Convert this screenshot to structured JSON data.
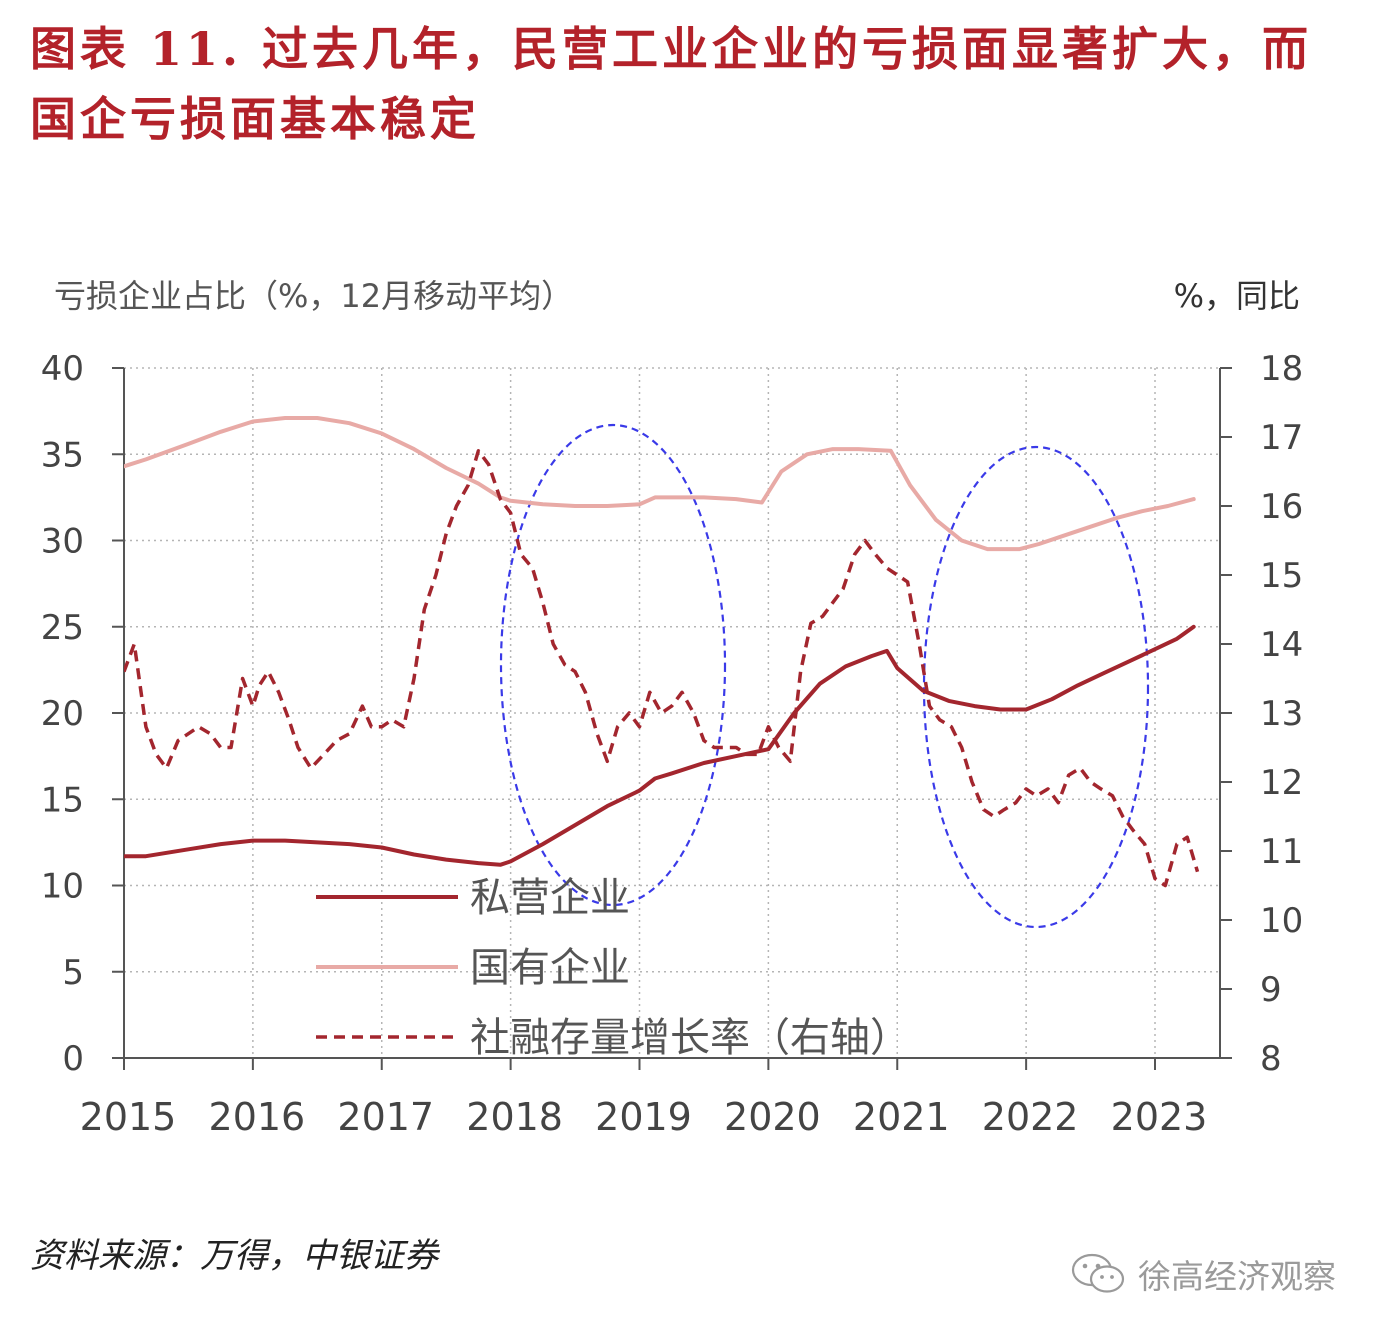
{
  "title": "图表 11. 过去几年，民营工业企业的亏损面显著扩大，而国企亏损面基本稳定",
  "source": "资料来源：万得，中银证券",
  "watermark": "徐高经济观察",
  "chart_data": {
    "type": "line",
    "left_axis_label": "亏损企业占比（%，12月移动平均）",
    "right_axis_label": "%，同比",
    "left_ylim": [
      0,
      40
    ],
    "left_ticks": [
      0,
      5,
      10,
      15,
      20,
      25,
      30,
      35,
      40
    ],
    "right_ylim": [
      8,
      18
    ],
    "right_ticks": [
      8,
      9,
      10,
      11,
      12,
      13,
      14,
      15,
      16,
      17,
      18
    ],
    "x_ticks": [
      "2015",
      "2016",
      "2017",
      "2018",
      "2019",
      "2020",
      "2021",
      "2022",
      "2023"
    ],
    "xlim": [
      2015,
      2023.5
    ],
    "grid": true,
    "legend_position": "bottom-left",
    "series": [
      {
        "name": "私营企业",
        "axis": "left",
        "color": "#a3262e",
        "style": "solid",
        "x": [
          2015.0,
          2015.17,
          2015.5,
          2015.75,
          2016.0,
          2016.25,
          2016.5,
          2016.75,
          2017.0,
          2017.25,
          2017.5,
          2017.75,
          2017.92,
          2018.0,
          2018.25,
          2018.5,
          2018.75,
          2019.0,
          2019.12,
          2019.25,
          2019.5,
          2019.75,
          2020.0,
          2020.2,
          2020.4,
          2020.6,
          2020.8,
          2020.92,
          2021.0,
          2021.2,
          2021.4,
          2021.6,
          2021.8,
          2022.0,
          2022.2,
          2022.4,
          2022.6,
          2022.8,
          2023.0,
          2023.17,
          2023.3
        ],
        "values": [
          11.7,
          11.7,
          12.1,
          12.4,
          12.6,
          12.6,
          12.5,
          12.4,
          12.2,
          11.8,
          11.5,
          11.3,
          11.2,
          11.4,
          12.4,
          13.5,
          14.6,
          15.5,
          16.2,
          16.5,
          17.1,
          17.5,
          17.9,
          20.0,
          21.7,
          22.7,
          23.3,
          23.6,
          22.6,
          21.3,
          20.7,
          20.4,
          20.2,
          20.2,
          20.8,
          21.6,
          22.3,
          23.0,
          23.7,
          24.3,
          25.0
        ]
      },
      {
        "name": "国有企业",
        "axis": "left",
        "color": "#e8aaa6",
        "style": "solid",
        "x": [
          2015.0,
          2015.17,
          2015.5,
          2015.75,
          2016.0,
          2016.25,
          2016.5,
          2016.75,
          2017.0,
          2017.25,
          2017.5,
          2017.75,
          2017.92,
          2018.0,
          2018.25,
          2018.5,
          2018.75,
          2019.0,
          2019.12,
          2019.25,
          2019.5,
          2019.75,
          2019.95,
          2020.1,
          2020.3,
          2020.5,
          2020.7,
          2020.95,
          2021.1,
          2021.3,
          2021.5,
          2021.7,
          2021.95,
          2022.1,
          2022.3,
          2022.5,
          2022.7,
          2022.9,
          2023.1,
          2023.3
        ],
        "values": [
          34.3,
          34.7,
          35.6,
          36.3,
          36.9,
          37.1,
          37.1,
          36.8,
          36.2,
          35.3,
          34.2,
          33.3,
          32.5,
          32.3,
          32.1,
          32.0,
          32.0,
          32.1,
          32.5,
          32.5,
          32.5,
          32.4,
          32.2,
          34.0,
          35.0,
          35.3,
          35.3,
          35.2,
          33.2,
          31.2,
          30.0,
          29.5,
          29.5,
          29.8,
          30.3,
          30.8,
          31.3,
          31.7,
          32.0,
          32.4
        ]
      },
      {
        "name": "社融存量增长率（右轴）",
        "axis": "right",
        "color": "#a3262e",
        "style": "dashed",
        "x": [
          2015.0,
          2015.08,
          2015.17,
          2015.25,
          2015.33,
          2015.42,
          2015.5,
          2015.58,
          2015.67,
          2015.75,
          2015.83,
          2015.92,
          2016.0,
          2016.05,
          2016.12,
          2016.2,
          2016.28,
          2016.35,
          2016.45,
          2016.55,
          2016.65,
          2016.75,
          2016.85,
          2016.92,
          2017.0,
          2017.08,
          2017.17,
          2017.25,
          2017.33,
          2017.42,
          2017.5,
          2017.58,
          2017.67,
          2017.75,
          2017.83,
          2017.92,
          2018.0,
          2018.08,
          2018.17,
          2018.25,
          2018.33,
          2018.42,
          2018.5,
          2018.58,
          2018.67,
          2018.75,
          2018.83,
          2018.92,
          2019.0,
          2019.08,
          2019.17,
          2019.25,
          2019.33,
          2019.42,
          2019.5,
          2019.58,
          2019.67,
          2019.75,
          2019.83,
          2019.92,
          2020.0,
          2020.08,
          2020.17,
          2020.25,
          2020.33,
          2020.42,
          2020.5,
          2020.58,
          2020.67,
          2020.75,
          2020.83,
          2020.92,
          2021.0,
          2021.08,
          2021.17,
          2021.25,
          2021.33,
          2021.42,
          2021.5,
          2021.58,
          2021.67,
          2021.75,
          2021.83,
          2021.92,
          2022.0,
          2022.08,
          2022.17,
          2022.25,
          2022.33,
          2022.42,
          2022.5,
          2022.58,
          2022.67,
          2022.75,
          2022.83,
          2022.92,
          2023.0,
          2023.08,
          2023.17,
          2023.25,
          2023.33
        ],
        "values": [
          13.6,
          14.0,
          12.8,
          12.4,
          12.2,
          12.6,
          12.7,
          12.8,
          12.7,
          12.5,
          12.5,
          13.5,
          13.1,
          13.4,
          13.6,
          13.3,
          12.9,
          12.5,
          12.2,
          12.4,
          12.6,
          12.7,
          13.1,
          12.8,
          12.8,
          12.9,
          12.8,
          13.5,
          14.5,
          15.0,
          15.6,
          16.0,
          16.3,
          16.8,
          16.6,
          16.1,
          15.9,
          15.3,
          15.1,
          14.6,
          14.0,
          13.7,
          13.6,
          13.3,
          12.7,
          12.3,
          12.8,
          13.0,
          12.8,
          13.3,
          13.0,
          13.1,
          13.3,
          13.0,
          12.6,
          12.5,
          12.5,
          12.5,
          12.4,
          12.4,
          12.8,
          12.5,
          12.3,
          13.6,
          14.3,
          14.4,
          14.6,
          14.8,
          15.3,
          15.5,
          15.3,
          15.1,
          15.0,
          14.9,
          14.0,
          13.1,
          12.9,
          12.8,
          12.5,
          12.0,
          11.6,
          11.5,
          11.6,
          11.7,
          11.9,
          11.8,
          11.9,
          11.7,
          12.1,
          12.2,
          12.0,
          11.9,
          11.8,
          11.5,
          11.3,
          11.1,
          10.6,
          10.5,
          11.1,
          11.2,
          10.7
        ]
      }
    ]
  }
}
